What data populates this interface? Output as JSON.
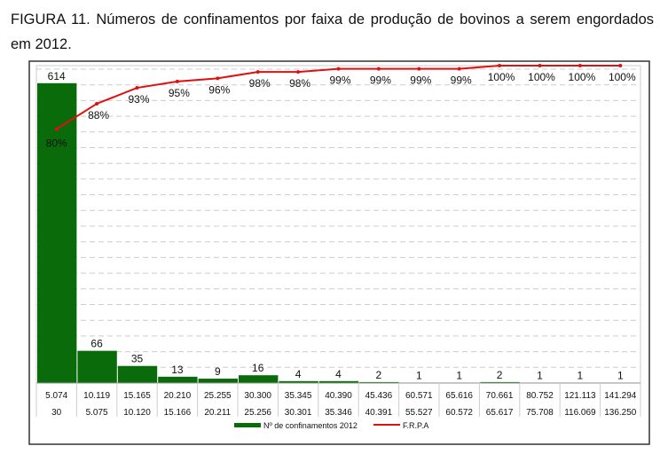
{
  "caption": "FIGURA 11. Números de confinamentos por faixa de produção de bovinos a serem engordados em 2012.",
  "chart_data": {
    "type": "bar",
    "categories_upper": [
      "5.074",
      "10.119",
      "15.165",
      "20.210",
      "25.255",
      "30.300",
      "35.345",
      "40.390",
      "45.436",
      "60.571",
      "65.616",
      "70.661",
      "80.752",
      "121.113",
      "141.294"
    ],
    "categories_lower": [
      "30",
      "5.075",
      "10.120",
      "15.166",
      "20.211",
      "25.256",
      "30.301",
      "35.346",
      "40.391",
      "55.527",
      "60.572",
      "65.617",
      "75.708",
      "116.069",
      "136.250"
    ],
    "series": [
      {
        "name": "Nº de confinamentos 2012",
        "type": "bar",
        "values": [
          614,
          66,
          35,
          13,
          9,
          16,
          4,
          4,
          2,
          1,
          1,
          2,
          1,
          1,
          1
        ],
        "color": "#0a6b0a"
      },
      {
        "name": "F.R.P.A",
        "type": "line",
        "values": [
          80,
          88,
          93,
          95,
          96,
          98,
          98,
          99,
          99,
          99,
          99,
          100,
          100,
          100,
          100
        ],
        "labels": [
          "80%",
          "88%",
          "93%",
          "95%",
          "96%",
          "98%",
          "98%",
          "99%",
          "99%",
          "99%",
          "99%",
          "100%",
          "100%",
          "100%",
          "100%"
        ],
        "color": "#e01010",
        "ylim": [
          0,
          100
        ]
      }
    ],
    "ylim": [
      0,
      650
    ],
    "grid": true,
    "legend": "bottom"
  }
}
